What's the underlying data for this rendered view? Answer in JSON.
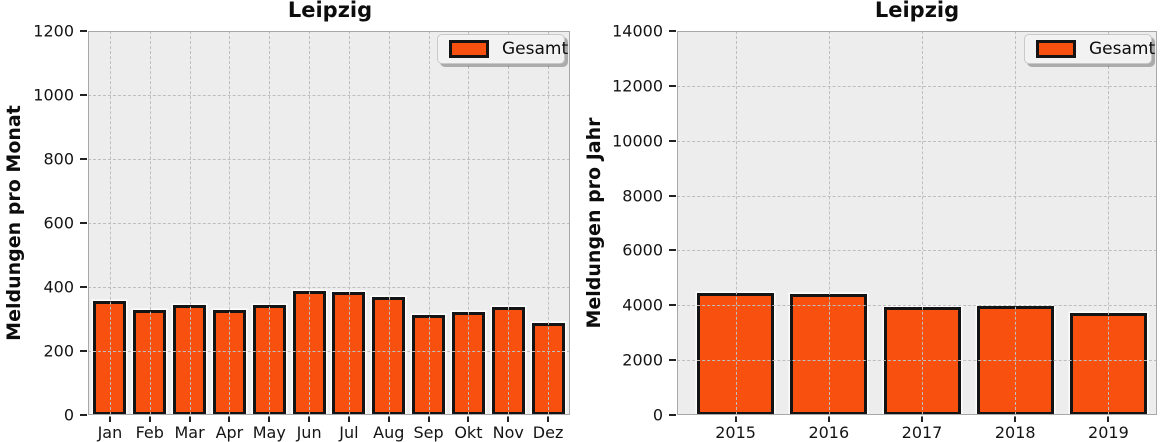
{
  "colors": {
    "bar_fill": "#F8500F",
    "bar_edge": "#141414",
    "axes_background": "#EDEDED",
    "gridline": "#BEBEBE",
    "legend_background": "#F2F2F2",
    "figure_background": "#FFFFFF"
  },
  "chart_data": [
    {
      "type": "bar",
      "title": "Leipzig",
      "ylabel": "Meldungen pro Monat",
      "xlabel": "",
      "categories": [
        "Jan",
        "Feb",
        "Mar",
        "Apr",
        "May",
        "Jun",
        "Jul",
        "Aug",
        "Sep",
        "Okt",
        "Nov",
        "Dez"
      ],
      "values": [
        357,
        327,
        345,
        327,
        344,
        388,
        384,
        368,
        314,
        322,
        339,
        288
      ],
      "ylim": [
        0,
        1200
      ],
      "yticks": [
        0,
        200,
        400,
        600,
        800,
        1000,
        1200
      ],
      "grid": "dashed, drawn above bars",
      "legend": [
        "Gesamt"
      ],
      "legend_position": "upper right"
    },
    {
      "type": "bar",
      "title": "Leipzig",
      "ylabel": "Meldungen pro Jahr",
      "xlabel": "",
      "categories": [
        "2015",
        "2016",
        "2017",
        "2018",
        "2019"
      ],
      "values": [
        4450,
        4400,
        3950,
        3980,
        3720
      ],
      "ylim": [
        0,
        14000
      ],
      "yticks": [
        0,
        2000,
        4000,
        6000,
        8000,
        10000,
        12000,
        14000
      ],
      "grid": "dashed, drawn above bars",
      "legend": [
        "Gesamt"
      ],
      "legend_position": "upper right"
    }
  ]
}
